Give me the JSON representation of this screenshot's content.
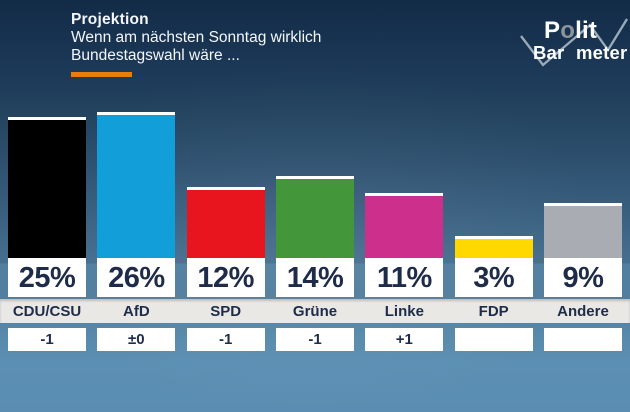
{
  "header": {
    "title": "Projektion",
    "subtitle_line1": "Wenn am nächsten Sonntag wirklich",
    "subtitle_line2": "Bundestagswahl wäre ...",
    "accent_color": "#e87d0d"
  },
  "logo": {
    "top_pre": "P",
    "top_o": "o",
    "top_rest": "lit",
    "bottom_pre": "Bar",
    "bottom_o": "o",
    "bottom_rest": "meter",
    "checkmark_color": "#b3c1cd",
    "o_gray": "#8d949b",
    "o_navy": "#1d3550"
  },
  "chart_data": {
    "type": "bar",
    "title": "Projektion",
    "subtitle": "Wenn am nächsten Sonntag wirklich Bundestagswahl wäre ...",
    "categories": [
      "CDU/CSU",
      "AfD",
      "SPD",
      "Grüne",
      "Linke",
      "FDP",
      "Andere"
    ],
    "values": [
      25,
      26,
      12,
      14,
      11,
      3,
      9
    ],
    "unit": "%",
    "value_labels": [
      "25%",
      "26%",
      "12%",
      "14%",
      "11%",
      "3%",
      "9%"
    ],
    "changes": [
      "-1",
      "±0",
      "-1",
      "-1",
      "+1",
      "",
      ""
    ],
    "bar_colors": [
      "#000000",
      "#129fd9",
      "#e8141e",
      "#44963a",
      "#cd2f8c",
      "#ffd800",
      "#a9adb3"
    ],
    "value_text_color": "#1e2c49",
    "ylim": [
      0,
      28
    ],
    "grid": false,
    "legend": false,
    "orientation": "vertical"
  }
}
